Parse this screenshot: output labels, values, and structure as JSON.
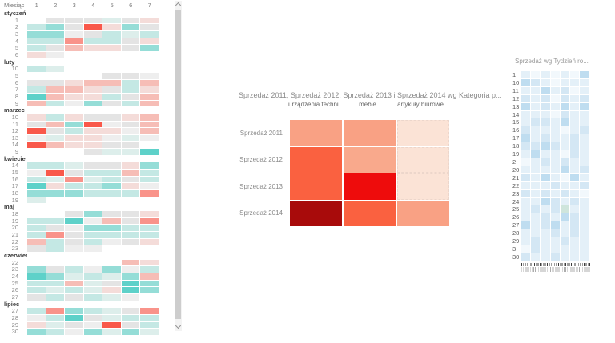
{
  "chart_data": [
    {
      "id": "calendar-week-day-heatmap",
      "type": "heatmap",
      "corner_label": "Miesiąc",
      "columns": [
        "1",
        "2",
        "3",
        "4",
        "5",
        "6",
        "7"
      ],
      "palette": {
        "T3": "#5ED1C9",
        "T2": "#95DDD7",
        "T1": "#C4E8E4",
        "t0": "#DDEEEB",
        "G": "#E4E4E4",
        "g0": "#EEEEEE",
        "P1": "#F4DCD9",
        "P2": "#F6BDB6",
        "R2": "#F9938A",
        "R3": "#F9584A",
        "W": ""
      },
      "groups": [
        {
          "month": "styczeń",
          "rows": [
            {
              "label": "1",
              "cells": "W G G G t0* G P1"
            },
            {
              "label": "2",
              "cells": "T1 T2* G R3 P1 T2 G"
            },
            {
              "label": "3",
              "cells": "T2* T2* g0 G T1 t0 T1*"
            },
            {
              "label": "4",
              "cells": "T1 T1 R2* T1* T1 G P1"
            },
            {
              "label": "5",
              "cells": "T1* G P2 P1 P1* G T2"
            },
            {
              "label": "6",
              "cells": "P1 g0 W W W W W"
            }
          ]
        },
        {
          "month": "luty",
          "rows": [
            {
              "label": "10",
              "cells": "T1 t0 W W W W W"
            },
            {
              "label": "5",
              "cells": "W W W W G G g0"
            },
            {
              "label": "6",
              "cells": "G G P1 P2 P2 T1 P2*"
            },
            {
              "label": "7",
              "cells": "T1 P2* P2 P1 G T1 P1"
            },
            {
              "label": "8",
              "cells": "T3 P2 P1 P1 T1* G P2"
            },
            {
              "label": "9",
              "cells": "P2 T1 g0 T2* G T1 P2*"
            }
          ]
        },
        {
          "month": "marzec",
          "rows": [
            {
              "label": "10",
              "cells": "P1* T1 P1 G G P1 P2"
            },
            {
              "label": "11",
              "cells": "G P2 T2 R3 g0 G P2"
            },
            {
              "label": "12",
              "cells": "R3* G T1 P1 P1 g0 P2*"
            },
            {
              "label": "13",
              "cells": "g0 t0 P1 P1 g0 t0 g0"
            },
            {
              "label": "14",
              "cells": "R3* P2 P1 P1 G G W"
            },
            {
              "label": "9",
              "cells": "W W W G t0 t0 T3"
            }
          ]
        },
        {
          "month": "kwiecie",
          "rows": [
            {
              "label": "14",
              "cells": "T1* T1* t0 G G P1 T2*"
            },
            {
              "label": "15",
              "cells": "g0 R3 G T1 T1 P2* T1"
            },
            {
              "label": "16",
              "cells": "T1 t0 R2* t0 T1 G T1"
            },
            {
              "label": "17",
              "cells": "T3* P1 T1 T1 T2* P1* g0"
            },
            {
              "label": "18",
              "cells": "T2 T2* T2* T1 T1 T1 R2"
            },
            {
              "label": "19",
              "cells": "t0 W W W W W W"
            }
          ]
        },
        {
          "month": "maj",
          "rows": [
            {
              "label": "18",
              "cells": "W W G T2* G G P1"
            },
            {
              "label": "19",
              "cells": "T1 T1 T3* g0 P2 G R2*"
            },
            {
              "label": "20",
              "cells": "T1* G g0 T2* T2* T1 T1"
            },
            {
              "label": "21",
              "cells": "T1 R2* G T1 T1* T1* T1"
            },
            {
              "label": "22",
              "cells": "P2 T1 G T1* g0 G P1"
            },
            {
              "label": "23",
              "cells": "G T1 g0 g0 W W W"
            }
          ]
        },
        {
          "month": "czerwiec",
          "rows": [
            {
              "label": "22",
              "cells": "W W W W W P2* P1"
            },
            {
              "label": "23",
              "cells": "T2* G T1 g0 T2* g0 T1"
            },
            {
              "label": "24",
              "cells": "T3* T2 t0 T1 t0 T2* P2*"
            },
            {
              "label": "25",
              "cells": "T1 T1 P2 t0 G T3* T2"
            },
            {
              "label": "26",
              "cells": "T1* t0 T1 t0 P1* T3* T2"
            },
            {
              "label": "27",
              "cells": "G T1 G T1 t0 g0 W"
            }
          ]
        },
        {
          "month": "lipiec",
          "rows": [
            {
              "label": "27",
              "cells": "T1 R2* T2 T1 t0 G R2"
            },
            {
              "label": "28",
              "cells": "g0 T1 T3 G t0 T1 T1"
            },
            {
              "label": "29",
              "cells": "P1 t0 G g0 R3* G T1*"
            },
            {
              "label": "30",
              "cells": "T2 T1* g0 T2* t0 T2* t0"
            }
          ]
        }
      ],
      "icons": {
        "scroll_up": "chevron-up",
        "scroll_down": "chevron-down"
      }
    },
    {
      "id": "sales-by-category-heatmap",
      "type": "heatmap",
      "title": "Sprzedaż 2011, Sprzedaż 2012, Sprzedaż 2013 i Sprzedaż 2014 wg Kategoria p...",
      "columns": [
        "urządzenia techni...",
        "meble",
        "artykuły biurowe"
      ],
      "rows": [
        {
          "label": "Sprzedaż 2011",
          "colors": [
            "#F9A184",
            "#F9A184",
            "#FBE3D6"
          ]
        },
        {
          "label": "Sprzedaż 2012",
          "colors": [
            "#FA6140",
            "#F9A98C",
            "#FBE3D6"
          ]
        },
        {
          "label": "Sprzedaż 2013",
          "colors": [
            "#FA6140",
            "#EE0C0C",
            "#FBE3D6"
          ]
        },
        {
          "label": "Sprzedaż 2014",
          "colors": [
            "#A80B0B",
            "#FA6140",
            "#F9A184"
          ]
        }
      ]
    },
    {
      "id": "sales-by-week-heatmap",
      "type": "heatmap",
      "title": "Sprzedaż wg Tydzień ro...",
      "palette": {
        "b0": "#F2F8FC",
        "b1": "#E4F0F8",
        "b2": "#D4E7F4",
        "b3": "#BFDDF0",
        "g1": "#CFE5DC",
        "W": ""
      },
      "rows": [
        {
          "label": "1",
          "cells": "b1 b0 b1 b0 b1 b0 b3*"
        },
        {
          "label": "10",
          "cells": "b3 b2* b1 b0 b1 b1 b1"
        },
        {
          "label": "11",
          "cells": "b1 b1 b3* b1 b2 b0 b1"
        },
        {
          "label": "12",
          "cells": "b2 b1 b2* b0 b2* b1 b2"
        },
        {
          "label": "13",
          "cells": "b3* b1 b2 b1 b3 b1 b3*"
        },
        {
          "label": "14",
          "cells": "b1 b1 b1 b0 b2 b1 b1"
        },
        {
          "label": "15",
          "cells": "b1 b2* b2 b1 b3* b1 b1"
        },
        {
          "label": "16",
          "cells": "b2 b1 b1 b1 b0 b1 b2"
        },
        {
          "label": "17",
          "cells": "b3 b1 b2 b1 b1 b2 b1"
        },
        {
          "label": "18",
          "cells": "b2 b2* b3* b2 b1 b2 b1"
        },
        {
          "label": "19",
          "cells": "b1 b3* b1 b1 b0 b2 b1"
        },
        {
          "label": "2",
          "cells": "b0 b1 b2* b1 b2 b1 b1"
        },
        {
          "label": "20",
          "cells": "b1 b1 b1 b1 b3 b1 b2"
        },
        {
          "label": "21",
          "cells": "b2 b1 b3* b1 b0 b3* b1"
        },
        {
          "label": "22",
          "cells": "b1 b1 b1 b2 b1 b1 b2"
        },
        {
          "label": "23",
          "cells": "b2* b1 b2* b1 b2 b1 b0"
        },
        {
          "label": "24",
          "cells": "b1 b1 b3* b2 b1 b2 b1"
        },
        {
          "label": "25",
          "cells": "b1 b2* b1 b2 g1* b1 b1"
        },
        {
          "label": "26",
          "cells": "b1 b1 b2 b1 b3* b2 b1"
        },
        {
          "label": "27",
          "cells": "b3 b1 b2* b3* b1 b2 b1"
        },
        {
          "label": "28",
          "cells": "b1 b1 b1 b2 b1 b2* b1"
        },
        {
          "label": "29",
          "cells": "b1 b2 b1 b1 b2 b1 b1"
        },
        {
          "label": "3",
          "cells": "b0 b2* b1 b1 b1 b1 b1"
        },
        {
          "label": "30",
          "cells": "b2 b1 b1 b2* b1 b1 b1"
        }
      ]
    }
  ]
}
